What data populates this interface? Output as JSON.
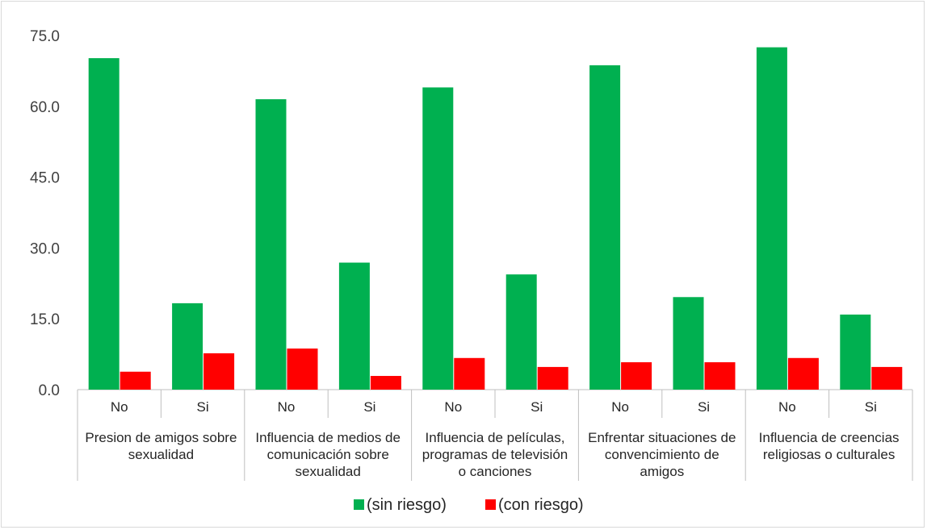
{
  "chart_data": {
    "type": "bar",
    "title": "",
    "xlabel": "",
    "ylabel": "",
    "ylim": [
      0,
      75
    ],
    "yticks": [
      "0.0",
      "15.0",
      "30.0",
      "45.0",
      "60.0",
      "75.0"
    ],
    "grid": false,
    "legend_position": "bottom",
    "groups": [
      {
        "label": [
          "Presion de amigos sobre",
          "sexualidad"
        ],
        "categories": [
          "No",
          "Si"
        ]
      },
      {
        "label": [
          "Influencia de medios de",
          "comunicación sobre",
          "sexualidad"
        ],
        "categories": [
          "No",
          "Si"
        ]
      },
      {
        "label": [
          "Influencia de películas,",
          "programas de televisión",
          "o canciones"
        ],
        "categories": [
          "No",
          "Si"
        ]
      },
      {
        "label": [
          "Enfrentar situaciones de",
          "convencimiento de",
          "amigos"
        ],
        "categories": [
          "No",
          "Si"
        ]
      },
      {
        "label": [
          "Influencia de creencias",
          "religiosas o culturales"
        ],
        "categories": [
          "No",
          "Si"
        ]
      }
    ],
    "series": [
      {
        "name": "(sin riesgo)",
        "color": "#00b050",
        "values": [
          70.2,
          18.3,
          61.5,
          26.9,
          64.0,
          24.4,
          68.7,
          19.6,
          72.5,
          15.9
        ]
      },
      {
        "name": "(con riesgo)",
        "color": "#ff0000",
        "values": [
          3.8,
          7.7,
          8.7,
          2.9,
          6.7,
          4.8,
          5.8,
          5.8,
          6.7,
          4.8
        ]
      }
    ]
  }
}
